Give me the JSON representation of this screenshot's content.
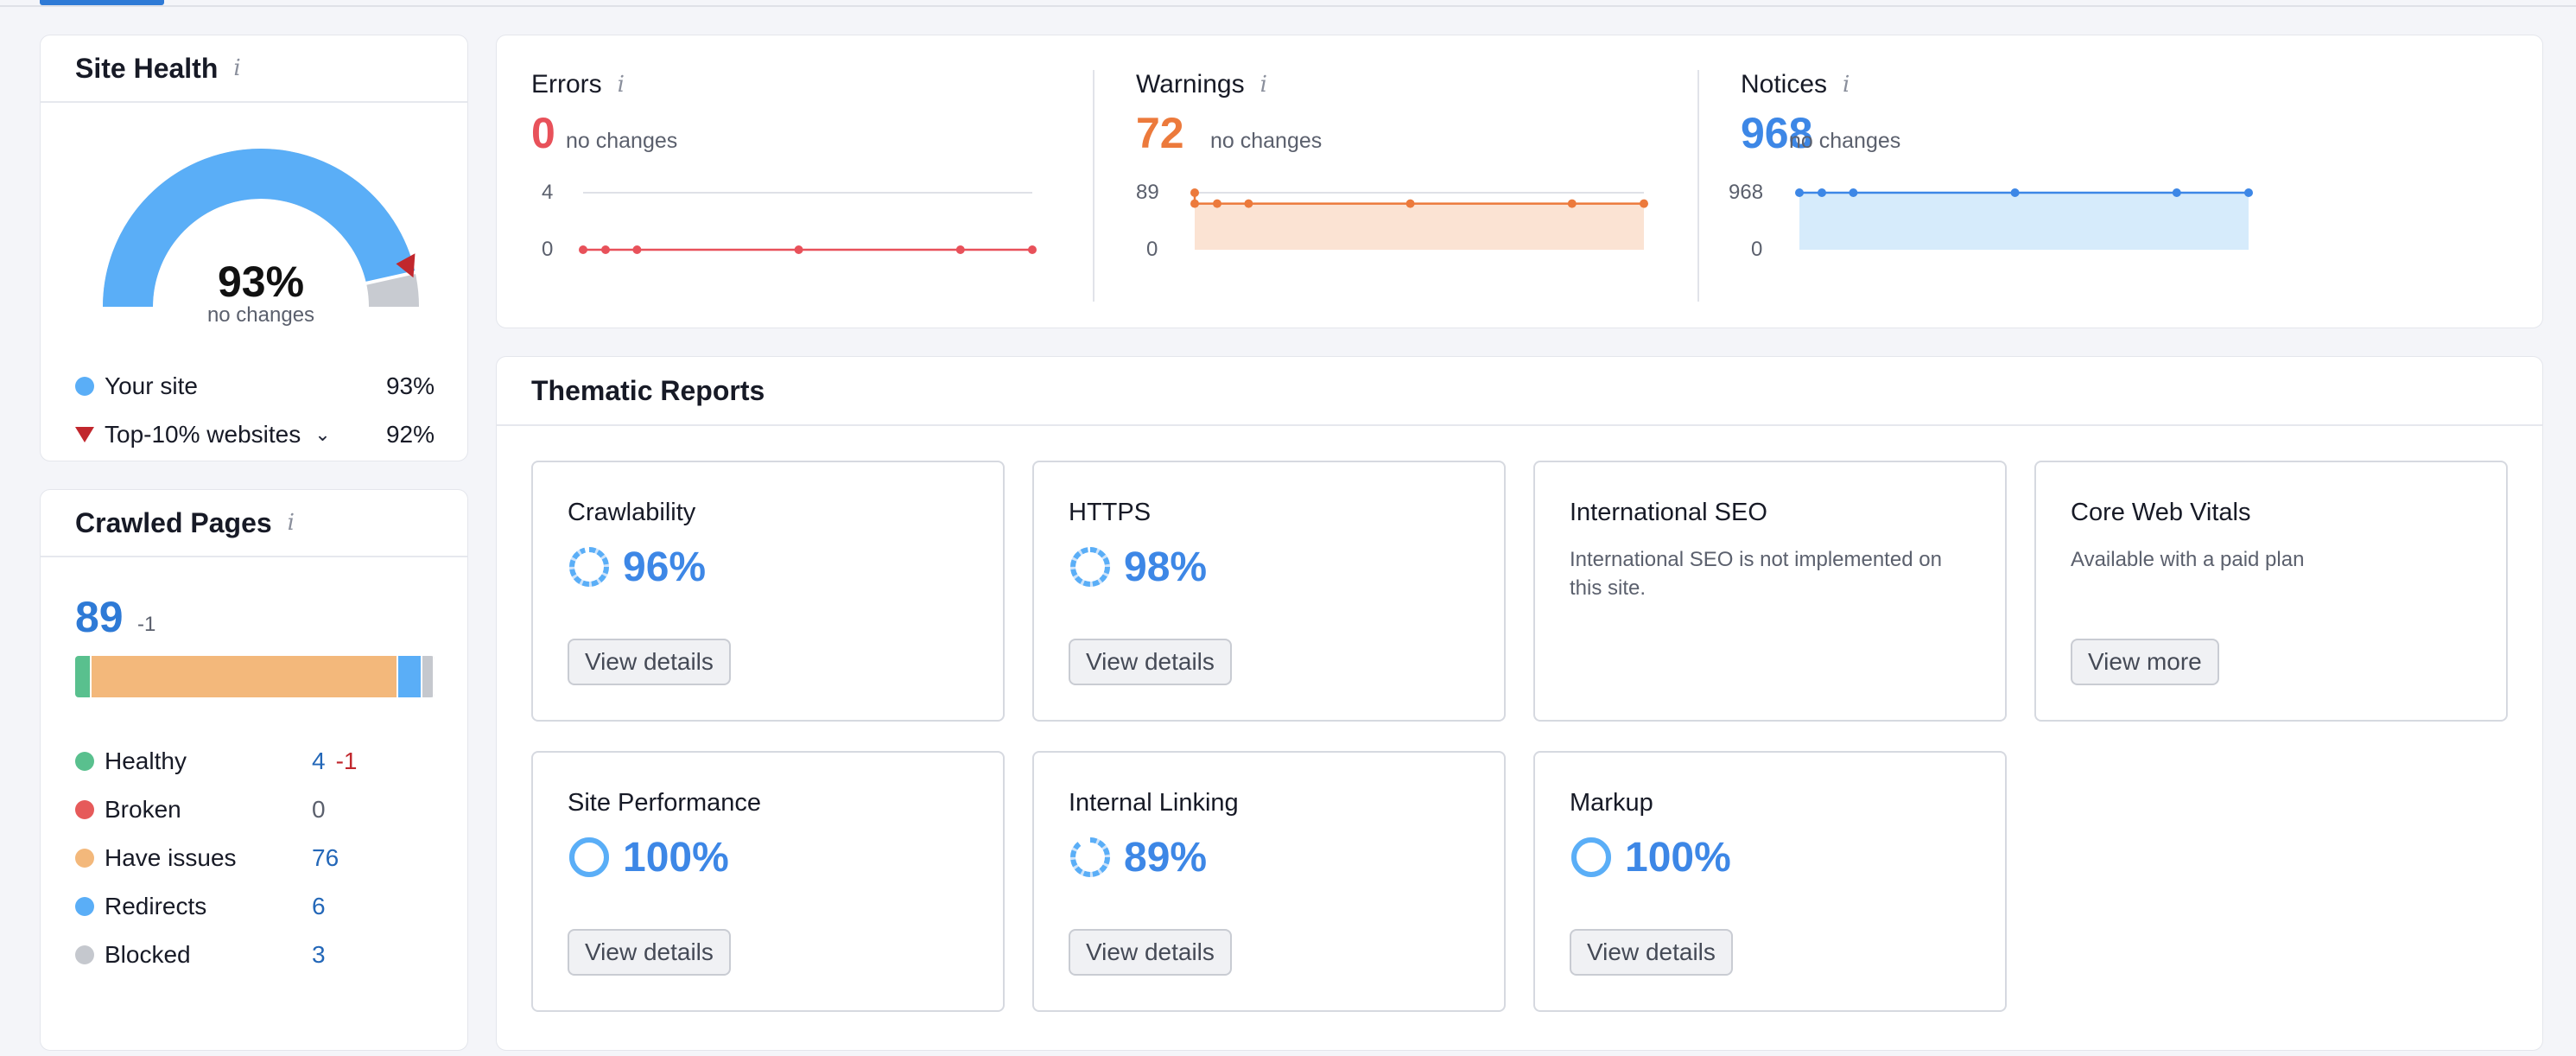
{
  "site_health": {
    "title": "Site Health",
    "info_icon": "i",
    "percent": "93%",
    "percent_value": 93,
    "subtitle": "no changes",
    "legend": [
      {
        "label": "Your site",
        "value": "93%",
        "color": "#5aaef7"
      },
      {
        "label": "Top-10% websites",
        "value": "92%",
        "color": "#c1272d",
        "icon": "chevron-down-icon"
      }
    ],
    "top10_value": 92
  },
  "crawled_pages": {
    "title": "Crawled Pages",
    "info_icon": "i",
    "total": "89",
    "delta": "-1",
    "breakdown": [
      {
        "label": "Healthy",
        "value": "4",
        "delta": "-1",
        "count": 4,
        "color": "#59c08e"
      },
      {
        "label": "Broken",
        "value": "0",
        "count": 0,
        "color": "#e65a5a"
      },
      {
        "label": "Have issues",
        "value": "76",
        "count": 76,
        "color": "#f3b87b"
      },
      {
        "label": "Redirects",
        "value": "6",
        "count": 6,
        "color": "#5aaef7"
      },
      {
        "label": "Blocked",
        "value": "3",
        "count": 3,
        "color": "#c5c8ce"
      }
    ]
  },
  "issues": [
    {
      "title": "Errors",
      "value": "0",
      "note": "no changes",
      "color": "#e8515a",
      "y_top": "4",
      "y_bottom": "0",
      "series": [
        0,
        0,
        0,
        0,
        0,
        0
      ],
      "ymax": 4,
      "fill": false
    },
    {
      "title": "Warnings",
      "value": "72",
      "note": "no changes",
      "color": "#ec7a3c",
      "y_top": "89",
      "y_bottom": "0",
      "series": [
        89,
        72,
        72,
        72,
        72,
        72,
        72
      ],
      "ymax": 89,
      "fill": true,
      "fill_color": "#fbe3d3"
    },
    {
      "title": "Notices",
      "value": "968",
      "note": "no changes",
      "color": "#3d87e6",
      "y_top": "968",
      "y_bottom": "0",
      "series": [
        968,
        968,
        968,
        968,
        968,
        968
      ],
      "ymax": 968,
      "fill": true,
      "fill_color": "#d6ebfb"
    }
  ],
  "thematic": {
    "title": "Thematic Reports",
    "tiles": [
      {
        "name": "Crawlability",
        "percent": "96%",
        "value": 96,
        "button": "View details"
      },
      {
        "name": "HTTPS",
        "percent": "98%",
        "value": 98,
        "button": "View details"
      },
      {
        "name": "International SEO",
        "description": "International SEO is not implemented on this site."
      },
      {
        "name": "Core Web Vitals",
        "description": "Available with a paid plan",
        "button": "View more"
      },
      {
        "name": "Site Performance",
        "percent": "100%",
        "value": 100,
        "button": "View details"
      },
      {
        "name": "Internal Linking",
        "percent": "89%",
        "value": 89,
        "button": "View details"
      },
      {
        "name": "Markup",
        "percent": "100%",
        "value": 100,
        "button": "View details"
      }
    ]
  }
}
